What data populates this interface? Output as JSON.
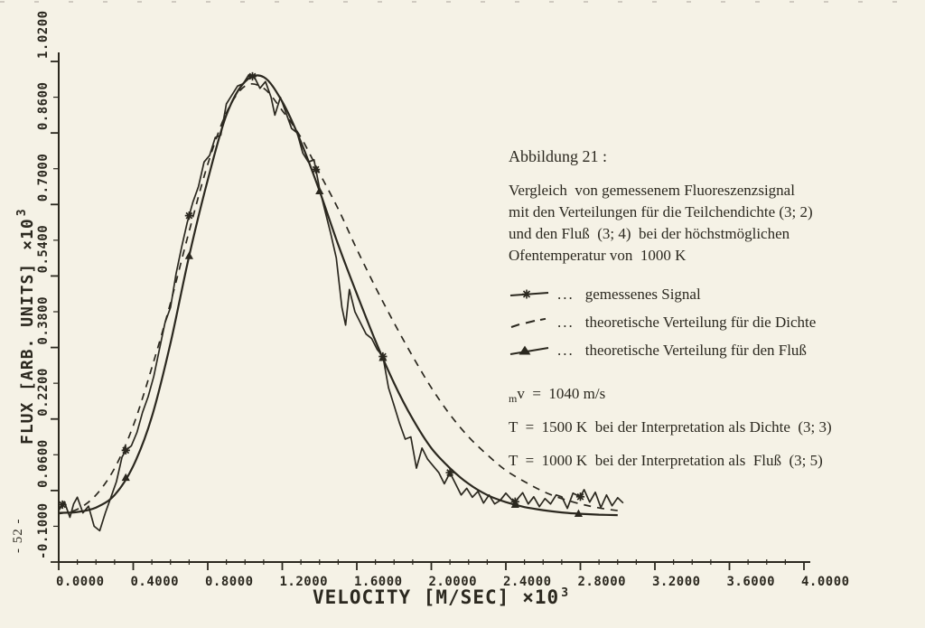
{
  "page": {
    "background": "#f5f2e6",
    "ink": "#2b281f",
    "page_number": "- 52 -"
  },
  "figure_text": {
    "title": "Abbildung 21 :",
    "caption_lines": [
      "Vergleich  von gemessenem Fluoreszenzsignal",
      "mit den Verteilungen für die Teilchendichte (3; 2)",
      "und den Fluß  (3; 4)  bei der höchstmöglichen",
      "Ofentemperatur von  1000 K"
    ],
    "legend": [
      {
        "marker": "line-with-asterisk",
        "dots": "...",
        "label": "gemessenes Signal"
      },
      {
        "marker": "dashed-line",
        "dots": "...",
        "label": "theoretische Verteilung für die Dichte"
      },
      {
        "marker": "line-with-triangle",
        "dots": "...",
        "label": "theoretische Verteilung für den Fluß"
      }
    ],
    "params": [
      {
        "sub": "m",
        "text": "v  =  1040 m/s"
      },
      {
        "sub": "",
        "text": "T  =  1500 K  bei der Interpretation als Dichte  (3; 3)"
      },
      {
        "sub": "",
        "text": "T  =  1000 K  bei der Interpretation als  Fluß  (3; 5)"
      }
    ]
  },
  "chart_data": {
    "type": "line",
    "title": "",
    "xlabel": "VELOCITY [M/SEC]",
    "ylabel": "FLUX [ARB. UNITS]",
    "scale_multiplier": "×10",
    "scale_exponent": "3",
    "xlim": [
      0,
      4
    ],
    "ylim": [
      -0.1,
      1.02
    ],
    "grid": false,
    "legend_position": "right-annotation",
    "x_ticks": {
      "values": [
        0.0,
        0.4,
        0.8,
        1.2,
        1.6,
        2.0,
        2.4,
        2.8,
        3.2,
        3.6,
        4.0
      ],
      "labels": [
        "0.0000",
        "0.4000",
        "0.8000",
        "1.2000",
        "1.6000",
        "2.0000",
        "2.4000",
        "2.8000",
        "3.2000",
        "3.6000",
        "4.0000"
      ],
      "minor_step": 0.1
    },
    "y_ticks": {
      "values": [
        -0.1,
        0.06,
        0.22,
        0.38,
        0.54,
        0.7,
        0.86,
        1.02
      ],
      "labels": [
        "-0.1000",
        "0.0600",
        "0.2200",
        "0.3800",
        "0.5400",
        "0.7000",
        "0.8600",
        "1.0200"
      ],
      "minor_step": 0.08
    },
    "series": [
      {
        "name": "theoretische Verteilung für die Dichte",
        "style": "dashed",
        "jagged": false,
        "marker": "none",
        "points": [
          [
            0.0,
            0.008
          ],
          [
            0.1,
            0.018
          ],
          [
            0.2,
            0.05
          ],
          [
            0.3,
            0.11
          ],
          [
            0.4,
            0.205
          ],
          [
            0.5,
            0.335
          ],
          [
            0.6,
            0.48
          ],
          [
            0.7,
            0.64
          ],
          [
            0.8,
            0.79
          ],
          [
            0.9,
            0.905
          ],
          [
            1.0,
            0.965
          ],
          [
            1.1,
            0.96
          ],
          [
            1.2,
            0.91
          ],
          [
            1.3,
            0.85
          ],
          [
            1.4,
            0.77
          ],
          [
            1.5,
            0.69
          ],
          [
            1.6,
            0.6
          ],
          [
            1.7,
            0.515
          ],
          [
            1.8,
            0.435
          ],
          [
            1.9,
            0.36
          ],
          [
            2.0,
            0.29
          ],
          [
            2.1,
            0.23
          ],
          [
            2.2,
            0.18
          ],
          [
            2.3,
            0.14
          ],
          [
            2.4,
            0.105
          ],
          [
            2.5,
            0.08
          ],
          [
            2.6,
            0.058
          ],
          [
            2.7,
            0.042
          ],
          [
            2.8,
            0.03
          ],
          [
            2.9,
            0.021
          ],
          [
            3.0,
            0.015
          ]
        ]
      },
      {
        "name": "theoretische Verteilung für den Fluß",
        "style": "solid",
        "jagged": false,
        "marker": "triangle",
        "marker_x": [
          0.36,
          0.7,
          1.4,
          1.74,
          2.45,
          2.79
        ],
        "points": [
          [
            0.0,
            0.01
          ],
          [
            0.1,
            0.012
          ],
          [
            0.2,
            0.022
          ],
          [
            0.3,
            0.05
          ],
          [
            0.4,
            0.115
          ],
          [
            0.5,
            0.225
          ],
          [
            0.6,
            0.39
          ],
          [
            0.7,
            0.585
          ],
          [
            0.8,
            0.755
          ],
          [
            0.9,
            0.9
          ],
          [
            1.0,
            0.975
          ],
          [
            1.1,
            0.985
          ],
          [
            1.2,
            0.93
          ],
          [
            1.3,
            0.84
          ],
          [
            1.4,
            0.73
          ],
          [
            1.5,
            0.61
          ],
          [
            1.6,
            0.5
          ],
          [
            1.7,
            0.395
          ],
          [
            1.8,
            0.3
          ],
          [
            1.9,
            0.22
          ],
          [
            2.0,
            0.155
          ],
          [
            2.1,
            0.11
          ],
          [
            2.2,
            0.075
          ],
          [
            2.3,
            0.05
          ],
          [
            2.4,
            0.034
          ],
          [
            2.5,
            0.023
          ],
          [
            2.6,
            0.016
          ],
          [
            2.7,
            0.011
          ],
          [
            2.8,
            0.008
          ],
          [
            2.9,
            0.006
          ],
          [
            3.0,
            0.005
          ]
        ]
      },
      {
        "name": "gemessenes Signal",
        "style": "solid",
        "jagged": true,
        "marker": "asterisk",
        "marker_x": [
          0.02,
          0.36,
          0.7,
          1.04,
          1.38,
          1.74,
          2.1,
          2.45,
          2.8
        ],
        "points": [
          [
            0.0,
            0.015
          ],
          [
            0.03,
            0.035
          ],
          [
            0.06,
            0.0
          ],
          [
            0.08,
            0.03
          ],
          [
            0.1,
            0.045
          ],
          [
            0.13,
            0.01
          ],
          [
            0.16,
            0.025
          ],
          [
            0.19,
            -0.02
          ],
          [
            0.22,
            -0.03
          ],
          [
            0.25,
            0.01
          ],
          [
            0.28,
            0.045
          ],
          [
            0.31,
            0.08
          ],
          [
            0.34,
            0.135
          ],
          [
            0.36,
            0.15
          ],
          [
            0.39,
            0.16
          ],
          [
            0.42,
            0.19
          ],
          [
            0.45,
            0.235
          ],
          [
            0.48,
            0.27
          ],
          [
            0.51,
            0.315
          ],
          [
            0.54,
            0.375
          ],
          [
            0.57,
            0.435
          ],
          [
            0.6,
            0.47
          ],
          [
            0.63,
            0.545
          ],
          [
            0.66,
            0.605
          ],
          [
            0.69,
            0.66
          ],
          [
            0.72,
            0.705
          ],
          [
            0.75,
            0.74
          ],
          [
            0.78,
            0.795
          ],
          [
            0.81,
            0.81
          ],
          [
            0.84,
            0.85
          ],
          [
            0.87,
            0.855
          ],
          [
            0.9,
            0.925
          ],
          [
            0.93,
            0.945
          ],
          [
            0.96,
            0.965
          ],
          [
            0.99,
            0.97
          ],
          [
            1.02,
            0.99
          ],
          [
            1.05,
            0.985
          ],
          [
            1.08,
            0.96
          ],
          [
            1.11,
            0.975
          ],
          [
            1.14,
            0.94
          ],
          [
            1.16,
            0.9
          ],
          [
            1.19,
            0.94
          ],
          [
            1.22,
            0.905
          ],
          [
            1.25,
            0.87
          ],
          [
            1.28,
            0.86
          ],
          [
            1.31,
            0.815
          ],
          [
            1.34,
            0.795
          ],
          [
            1.37,
            0.8
          ],
          [
            1.4,
            0.735
          ],
          [
            1.43,
            0.685
          ],
          [
            1.46,
            0.635
          ],
          [
            1.49,
            0.58
          ],
          [
            1.52,
            0.47
          ],
          [
            1.54,
            0.43
          ],
          [
            1.56,
            0.51
          ],
          [
            1.59,
            0.46
          ],
          [
            1.62,
            0.435
          ],
          [
            1.65,
            0.41
          ],
          [
            1.68,
            0.4
          ],
          [
            1.71,
            0.375
          ],
          [
            1.74,
            0.36
          ],
          [
            1.77,
            0.29
          ],
          [
            1.8,
            0.25
          ],
          [
            1.83,
            0.21
          ],
          [
            1.86,
            0.175
          ],
          [
            1.89,
            0.18
          ],
          [
            1.92,
            0.11
          ],
          [
            1.95,
            0.155
          ],
          [
            1.98,
            0.13
          ],
          [
            2.01,
            0.115
          ],
          [
            2.04,
            0.1
          ],
          [
            2.07,
            0.075
          ],
          [
            2.1,
            0.1
          ],
          [
            2.13,
            0.075
          ],
          [
            2.16,
            0.05
          ],
          [
            2.19,
            0.065
          ],
          [
            2.22,
            0.045
          ],
          [
            2.25,
            0.058
          ],
          [
            2.28,
            0.032
          ],
          [
            2.31,
            0.05
          ],
          [
            2.34,
            0.03
          ],
          [
            2.37,
            0.038
          ],
          [
            2.4,
            0.054
          ],
          [
            2.43,
            0.04
          ],
          [
            2.45,
            0.035
          ],
          [
            2.49,
            0.055
          ],
          [
            2.52,
            0.03
          ],
          [
            2.55,
            0.046
          ],
          [
            2.58,
            0.024
          ],
          [
            2.61,
            0.042
          ],
          [
            2.64,
            0.03
          ],
          [
            2.67,
            0.05
          ],
          [
            2.7,
            0.046
          ],
          [
            2.73,
            0.02
          ],
          [
            2.76,
            0.054
          ],
          [
            2.8,
            0.046
          ],
          [
            2.82,
            0.062
          ],
          [
            2.85,
            0.034
          ],
          [
            2.88,
            0.056
          ],
          [
            2.91,
            0.022
          ],
          [
            2.94,
            0.05
          ],
          [
            2.97,
            0.026
          ],
          [
            3.0,
            0.044
          ],
          [
            3.03,
            0.032
          ]
        ]
      }
    ]
  }
}
